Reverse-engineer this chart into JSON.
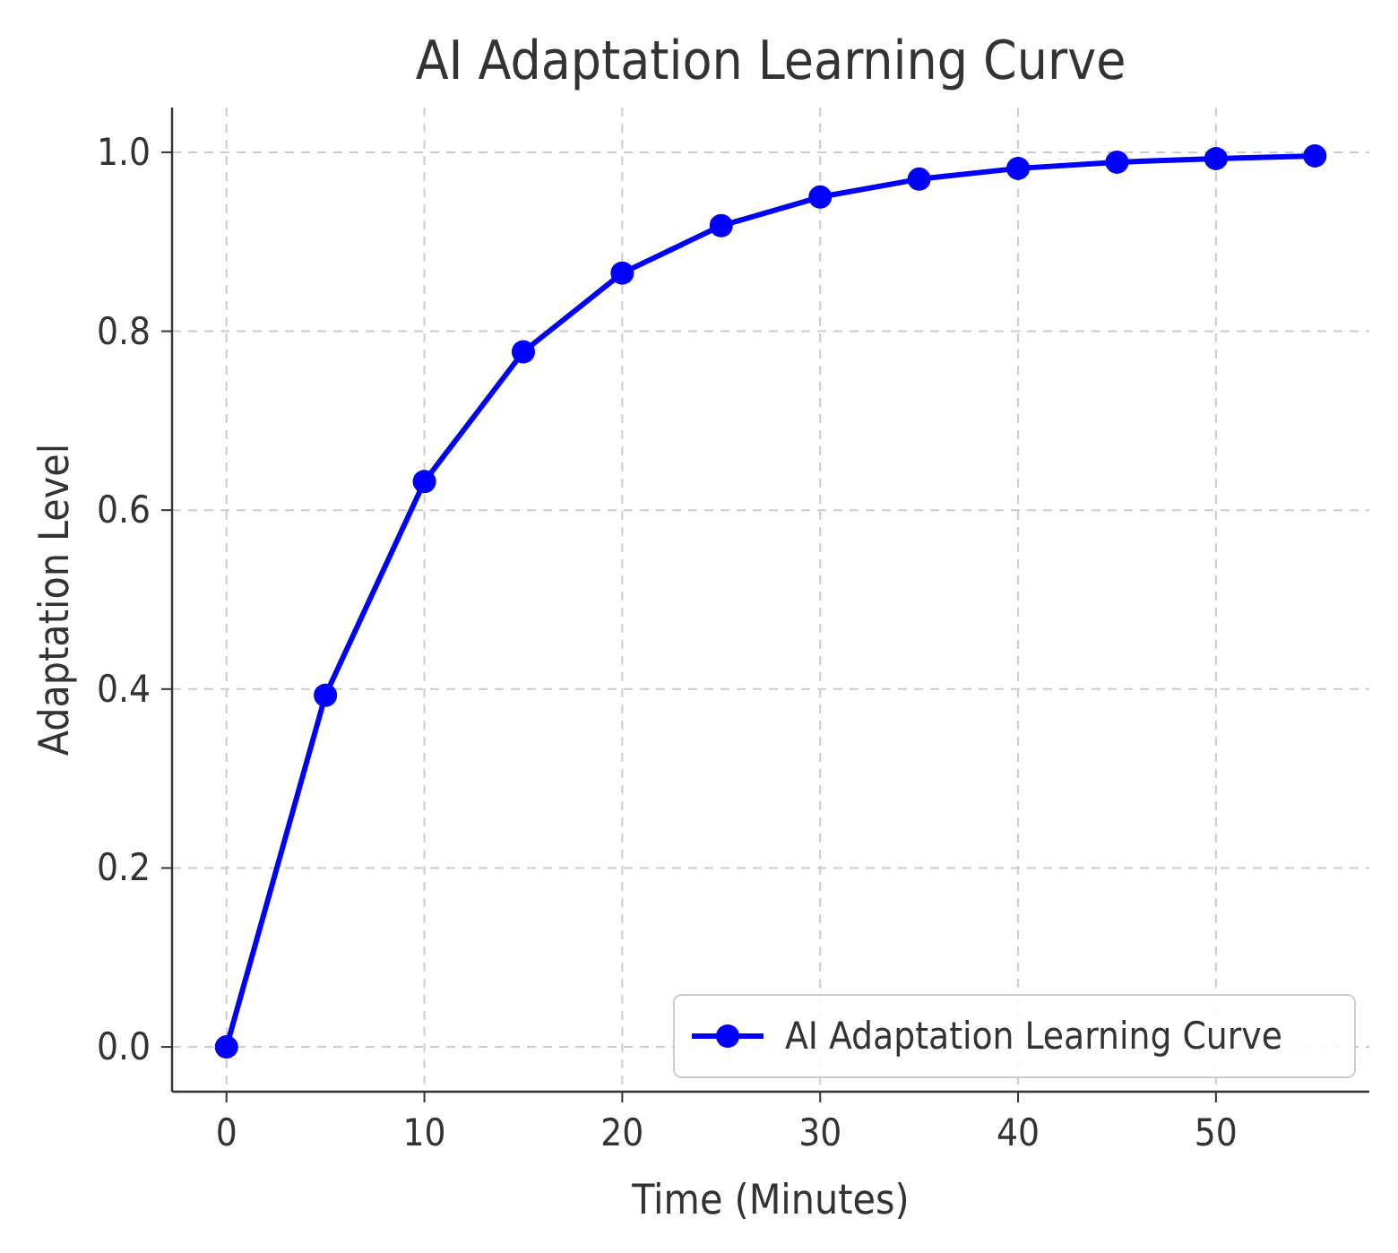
{
  "chart_data": {
    "type": "line",
    "title": "AI Adaptation Learning Curve",
    "xlabel": "Time (Minutes)",
    "ylabel": "Adaptation Level",
    "x": [
      0,
      5,
      10,
      15,
      20,
      25,
      30,
      35,
      40,
      45,
      50,
      55
    ],
    "series": [
      {
        "name": "AI Adaptation Learning Curve",
        "color": "#0000ff",
        "values": [
          0,
          0.393,
          0.632,
          0.777,
          0.865,
          0.918,
          0.95,
          0.97,
          0.982,
          0.989,
          0.993,
          0.996
        ]
      }
    ],
    "xlim": [
      -2.75,
      57.75
    ],
    "ylim": [
      -0.05,
      1.05
    ],
    "xticks": [
      0,
      10,
      20,
      30,
      40,
      50
    ],
    "yticks": [
      {
        "value": 0,
        "label": "0.0"
      },
      {
        "value": 0.2,
        "label": "0.2"
      },
      {
        "value": 0.4,
        "label": "0.4"
      },
      {
        "value": 0.6,
        "label": "0.6"
      },
      {
        "value": 0.8,
        "label": "0.8"
      },
      {
        "value": 1,
        "label": "1.0"
      }
    ],
    "grid": true,
    "legend": "bottom right",
    "marker": "circle",
    "line_style": "solid"
  }
}
